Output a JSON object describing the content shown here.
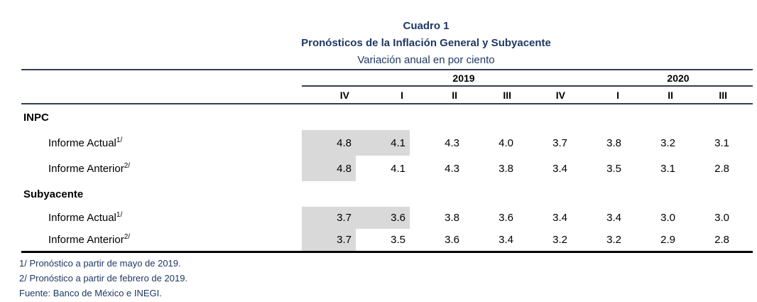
{
  "document": {
    "title": "Cuadro 1",
    "subtitle": "Pronósticos de la Inflación General y Subyacente",
    "units_line": "Variación anual en por ciento"
  },
  "table": {
    "years": [
      "2019",
      "2020"
    ],
    "quarters": [
      "IV",
      "I",
      "II",
      "III",
      "IV",
      "I",
      "II",
      "III"
    ],
    "sections": [
      {
        "name": "INPC",
        "rows": [
          {
            "label": "Informe Actual",
            "footnote_marker": "1/",
            "values": [
              "4.8",
              "4.1",
              "4.3",
              "4.0",
              "3.7",
              "3.8",
              "3.2",
              "3.1"
            ]
          },
          {
            "label": "Informe Anterior",
            "footnote_marker": "2/",
            "values": [
              "4.8",
              "4.1",
              "4.3",
              "3.8",
              "3.4",
              "3.5",
              "3.1",
              "2.8"
            ]
          }
        ]
      },
      {
        "name": "Subyacente",
        "rows": [
          {
            "label": "Informe Actual",
            "footnote_marker": "1/",
            "values": [
              "3.7",
              "3.6",
              "3.8",
              "3.6",
              "3.4",
              "3.4",
              "3.0",
              "3.0"
            ]
          },
          {
            "label": "Informe Anterior",
            "footnote_marker": "2/",
            "values": [
              "3.7",
              "3.5",
              "3.6",
              "3.4",
              "3.2",
              "3.2",
              "2.9",
              "2.8"
            ]
          }
        ]
      }
    ]
  },
  "footnotes": [
    "1/ Pronóstico a partir de mayo de 2019.",
    "2/ Pronóstico a partir de febrero de 2019.",
    "Fuente: Banco de México e INEGI."
  ],
  "colors": {
    "title_navy": "#1F3864",
    "rule_navy": "#333F52",
    "bottom_rule": "#000000",
    "cell_shade": "#D9D9D9"
  },
  "chart_data": {
    "type": "table",
    "title": "Cuadro 1",
    "subtitle": "Pronósticos de la Inflación General y Subyacente",
    "units": "Variación anual en por ciento",
    "column_groups": [
      {
        "year": "",
        "quarters": [
          "IV"
        ]
      },
      {
        "year": "2019",
        "quarters": [
          "I",
          "II",
          "III",
          "IV"
        ]
      },
      {
        "year": "2020",
        "quarters": [
          "I",
          "II",
          "III"
        ]
      }
    ],
    "series": [
      {
        "group": "INPC",
        "name": "Informe Actual",
        "values": [
          4.8,
          4.1,
          4.3,
          4.0,
          3.7,
          3.8,
          3.2,
          3.1
        ],
        "shaded_first_n": 2
      },
      {
        "group": "INPC",
        "name": "Informe Anterior",
        "values": [
          4.8,
          4.1,
          4.3,
          3.8,
          3.4,
          3.5,
          3.1,
          2.8
        ],
        "shaded_first_n": 1
      },
      {
        "group": "Subyacente",
        "name": "Informe Actual",
        "values": [
          3.7,
          3.6,
          3.8,
          3.6,
          3.4,
          3.4,
          3.0,
          3.0
        ],
        "shaded_first_n": 2
      },
      {
        "group": "Subyacente",
        "name": "Informe Anterior",
        "values": [
          3.7,
          3.5,
          3.6,
          3.4,
          3.2,
          3.2,
          2.9,
          2.8
        ],
        "shaded_first_n": 1
      }
    ]
  }
}
